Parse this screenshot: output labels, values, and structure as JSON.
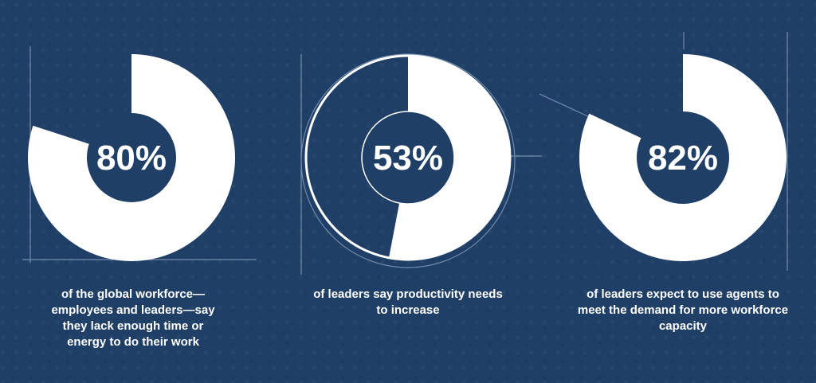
{
  "chart_data": [
    {
      "type": "pie",
      "value_percent": 80,
      "label": "80%",
      "caption": "of the global workforce—employees and leaders—say they lack enough time or energy to do their work"
    },
    {
      "type": "pie",
      "value_percent": 53,
      "label": "53%",
      "caption": "of leaders say productivity needs to increase"
    },
    {
      "type": "pie",
      "value_percent": 82,
      "label": "82%",
      "caption": "of leaders expect to use agents to meet the demand for more workforce capacity"
    }
  ],
  "colors": {
    "background": "#1f3f66",
    "fill": "#ffffff",
    "sketch_lines": "#8fa6c4"
  }
}
